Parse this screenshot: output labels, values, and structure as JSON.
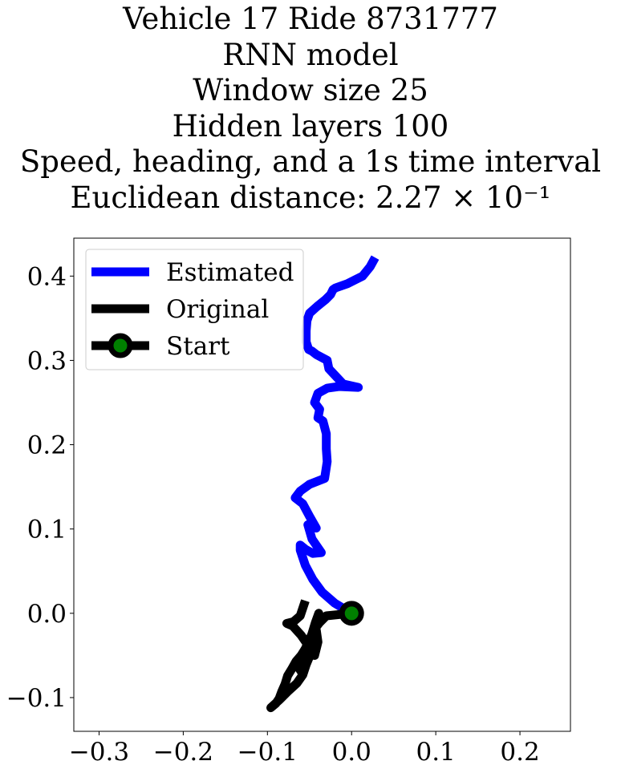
{
  "title_lines": [
    "Vehicle 17 Ride 8731777",
    "RNN model",
    "Window size 25",
    "Hidden layers 100",
    "Speed, heading, and a 1s time interval",
    "Euclidean distance: 2.27 × 10⁻¹"
  ],
  "chart_data": {
    "type": "line",
    "title": "Vehicle 17 Ride 8731777\nRNN model\nWindow size 25\nHidden layers 100\nSpeed, heading, and a 1s time interval\nEuclidean distance: 2.27 × 10⁻¹",
    "xlabel": "",
    "ylabel": "",
    "xlim": [
      -0.33,
      0.26
    ],
    "ylim": [
      -0.14,
      0.445
    ],
    "xticks": [
      -0.3,
      -0.2,
      -0.1,
      0.0,
      0.1,
      0.2
    ],
    "xtick_labels": [
      "−0.3",
      "−0.2",
      "−0.1",
      "0.0",
      "0.1",
      "0.2"
    ],
    "yticks": [
      -0.1,
      0.0,
      0.1,
      0.2,
      0.3,
      0.4
    ],
    "ytick_labels": [
      "−0.1",
      "0.0",
      "0.1",
      "0.2",
      "0.3",
      "0.4"
    ],
    "grid": false,
    "legend_position": "upper left",
    "series": [
      {
        "name": "Estimated",
        "color": "#0000ff",
        "x": [
          0.0,
          -0.02,
          -0.035,
          -0.046,
          -0.055,
          -0.061,
          -0.061,
          -0.055,
          -0.046,
          -0.036,
          -0.047,
          -0.052,
          -0.042,
          -0.05,
          -0.058,
          -0.067,
          -0.061,
          -0.05,
          -0.032,
          -0.029,
          -0.03,
          -0.03,
          -0.034,
          -0.04,
          -0.038,
          -0.044,
          -0.04,
          -0.029,
          -0.015,
          0.008,
          -0.01,
          -0.027,
          -0.029,
          -0.042,
          -0.047,
          -0.051,
          -0.054,
          -0.054,
          -0.053,
          -0.05,
          -0.041,
          -0.031,
          -0.025,
          -0.022,
          -0.019,
          -0.005,
          0.003,
          0.013,
          0.022,
          0.028
        ],
        "y": [
          0.0,
          0.012,
          0.025,
          0.04,
          0.057,
          0.075,
          0.081,
          0.076,
          0.071,
          0.072,
          0.088,
          0.105,
          0.101,
          0.115,
          0.13,
          0.137,
          0.145,
          0.153,
          0.16,
          0.18,
          0.195,
          0.213,
          0.228,
          0.232,
          0.242,
          0.25,
          0.261,
          0.267,
          0.269,
          0.268,
          0.272,
          0.29,
          0.3,
          0.307,
          0.311,
          0.313,
          0.322,
          0.335,
          0.347,
          0.356,
          0.364,
          0.372,
          0.378,
          0.384,
          0.386,
          0.391,
          0.395,
          0.4,
          0.411,
          0.422
        ]
      },
      {
        "name": "Original",
        "color": "#000000",
        "x": [
          0.0,
          -0.03,
          -0.038,
          -0.045,
          -0.05,
          -0.055,
          -0.06,
          -0.066,
          -0.071,
          -0.076,
          -0.079,
          -0.083,
          -0.086,
          -0.09,
          -0.096,
          -0.086,
          -0.076,
          -0.065,
          -0.058,
          -0.054,
          -0.049,
          -0.045,
          -0.044,
          -0.042,
          -0.04,
          -0.039,
          -0.043,
          -0.047,
          -0.05,
          -0.052,
          -0.054,
          -0.058,
          -0.062,
          -0.058,
          -0.053,
          -0.05,
          -0.047,
          -0.042,
          -0.04,
          -0.044,
          -0.048,
          -0.053,
          -0.06,
          -0.07,
          -0.077,
          -0.069,
          -0.061,
          -0.055
        ],
        "y": [
          0.0,
          -0.003,
          -0.011,
          -0.02,
          -0.031,
          -0.042,
          -0.05,
          -0.057,
          -0.066,
          -0.074,
          -0.084,
          -0.093,
          -0.101,
          -0.107,
          -0.112,
          -0.103,
          -0.093,
          -0.083,
          -0.073,
          -0.061,
          -0.049,
          -0.036,
          -0.024,
          -0.014,
          -0.006,
          0.0,
          -0.011,
          -0.024,
          -0.037,
          -0.05,
          -0.061,
          -0.072,
          -0.066,
          -0.056,
          -0.045,
          -0.034,
          -0.024,
          -0.02,
          -0.034,
          -0.05,
          -0.044,
          -0.036,
          -0.026,
          -0.015,
          -0.012,
          -0.01,
          -0.003,
          0.015
        ]
      },
      {
        "name": "Start",
        "color": "#000000",
        "marker_face_color": "#008000",
        "x": [
          0.0
        ],
        "y": [
          0.0
        ]
      }
    ]
  }
}
